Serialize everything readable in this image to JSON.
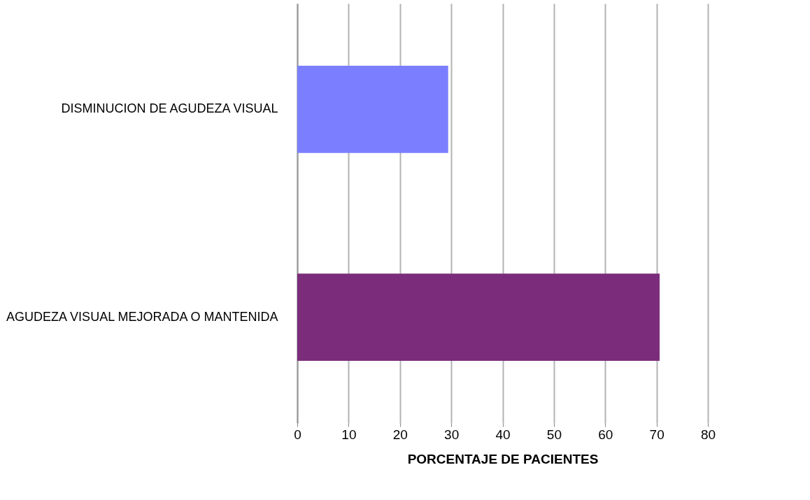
{
  "chart_data": {
    "type": "bar",
    "orientation": "horizontal",
    "xlabel": "PORCENTAJE DE PACIENTES",
    "categories": [
      "DISMINUCION DE AGUDEZA VISUAL",
      "AGUDEZA VISUAL MEJORADA O MANTENIDA"
    ],
    "values": [
      29.4,
      70.6
    ],
    "colors": [
      "#7b7fff",
      "#7b2d7b"
    ],
    "xlim": [
      0,
      80
    ],
    "xticks": [
      0,
      10,
      20,
      30,
      40,
      50,
      60,
      70,
      80
    ],
    "grid": "x"
  }
}
